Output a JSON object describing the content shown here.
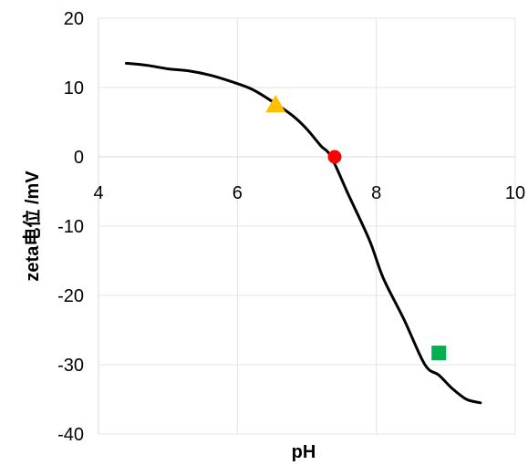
{
  "chart_data": {
    "type": "line",
    "xlabel": "pH",
    "ylabel": "zeta电位 /mV",
    "xlim": [
      4,
      10
    ],
    "ylim": [
      -40,
      20
    ],
    "x_ticks": [
      4,
      6,
      8,
      10
    ],
    "y_ticks": [
      20,
      10,
      0,
      -10,
      -20,
      -30,
      -40
    ],
    "grid": true,
    "legend": "none",
    "series": [
      {
        "color": "#000000",
        "x": [
          4.4,
          4.7,
          5.0,
          5.3,
          5.6,
          5.9,
          6.2,
          6.5,
          6.8,
          7.0,
          7.2,
          7.35,
          7.6,
          7.9,
          8.1,
          8.4,
          8.7,
          8.9,
          9.1,
          9.3,
          9.5
        ],
        "y": [
          13.5,
          13.2,
          12.7,
          12.4,
          11.8,
          10.9,
          9.8,
          8.0,
          5.9,
          4.0,
          1.6,
          0.0,
          -5.5,
          -12.0,
          -17.5,
          -23.5,
          -30.0,
          -31.5,
          -33.5,
          -35.0,
          -35.5
        ]
      }
    ],
    "markers": [
      {
        "shape": "triangle",
        "color": "#ffc000",
        "x": 6.55,
        "y": 7.5
      },
      {
        "shape": "circle",
        "color": "#ff0000",
        "x": 7.4,
        "y": 0.0
      },
      {
        "shape": "square",
        "color": "#00b050",
        "x": 8.9,
        "y": -28.3
      }
    ]
  }
}
